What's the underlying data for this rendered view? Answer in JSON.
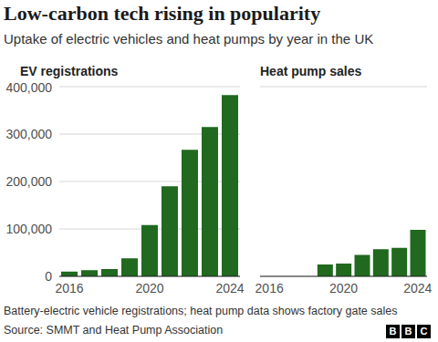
{
  "title": "Low-carbon tech rising in popularity",
  "subtitle": "Uptake of electric vehicles and heat pumps by year in the UK",
  "footnote": "Battery-electric vehicle registrations; heat pump data shows factory gate sales",
  "source": "Source: SMMT and Heat Pump Association",
  "logo": "BBC",
  "chart_data": [
    {
      "type": "bar",
      "title": "EV registrations",
      "categories": [
        "2016",
        null,
        null,
        null,
        "2020",
        null,
        null,
        null,
        "2024"
      ],
      "values": [
        10000,
        13000,
        15500,
        38000,
        108000,
        190000,
        267000,
        315000,
        382000
      ],
      "color": "#20691f",
      "ylim": [
        0,
        400000
      ],
      "yticks": [
        0,
        {
          "value": 100000,
          "label": "100,000"
        },
        {
          "value": 200000,
          "label": "200,000"
        },
        {
          "value": 300000,
          "label": "300,000"
        },
        {
          "value": 400000,
          "label": "400,000"
        }
      ],
      "grid": true
    },
    {
      "type": "bar",
      "title": "Heat pump sales",
      "categories": [
        "2016",
        null,
        null,
        null,
        "2020",
        null,
        null,
        null,
        "2024"
      ],
      "values": [
        null,
        null,
        null,
        25000,
        27000,
        45000,
        57000,
        60000,
        98000
      ],
      "color": "#20691f",
      "ylim": [
        0,
        400000
      ],
      "yticks": [
        0,
        {
          "value": 100000,
          "label": "100,000"
        },
        {
          "value": 200000,
          "label": "200,000"
        },
        {
          "value": 300000,
          "label": "300,000"
        },
        {
          "value": 400000,
          "label": "400,000"
        }
      ],
      "grid": true,
      "tick_labels": "x"
    }
  ]
}
